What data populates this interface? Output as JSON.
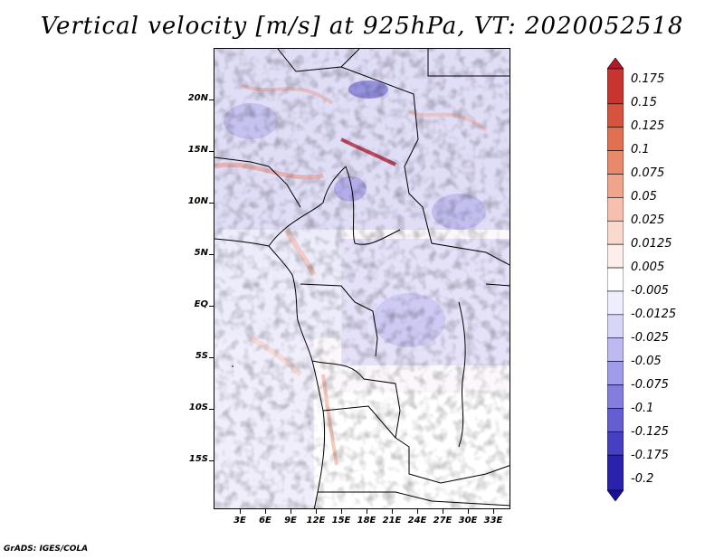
{
  "title": "Vertical velocity [m/s] at 925hPa, VT: 2020052518",
  "credit": "GrADS: IGES/COLA",
  "lat_labels": [
    "20N",
    "15N",
    "10N",
    "5N",
    "EQ",
    "5S",
    "10S",
    "15S"
  ],
  "lon_labels": [
    "3E",
    "6E",
    "9E",
    "12E",
    "15E",
    "18E",
    "21E",
    "24E",
    "27E",
    "30E",
    "33E"
  ],
  "colorbar": {
    "labels": [
      "0.175",
      "0.15",
      "0.125",
      "0.1",
      "0.075",
      "0.05",
      "0.025",
      "0.0125",
      "0.005",
      "-0.005",
      "-0.0125",
      "-0.025",
      "-0.05",
      "-0.075",
      "-0.1",
      "-0.125",
      "-0.175",
      "-0.2"
    ],
    "colors": [
      "#b2182b",
      "#c8352f",
      "#d6533e",
      "#e0704f",
      "#e88a6a",
      "#f0a48b",
      "#f6bfae",
      "#fad8cd",
      "#fdeee9",
      "#ffffff",
      "#eeeeff",
      "#d8d6f8",
      "#bdb9f1",
      "#a19ce9",
      "#837dde",
      "#655ed2",
      "#463fc2",
      "#2a22ad",
      "#1a1295"
    ]
  }
}
